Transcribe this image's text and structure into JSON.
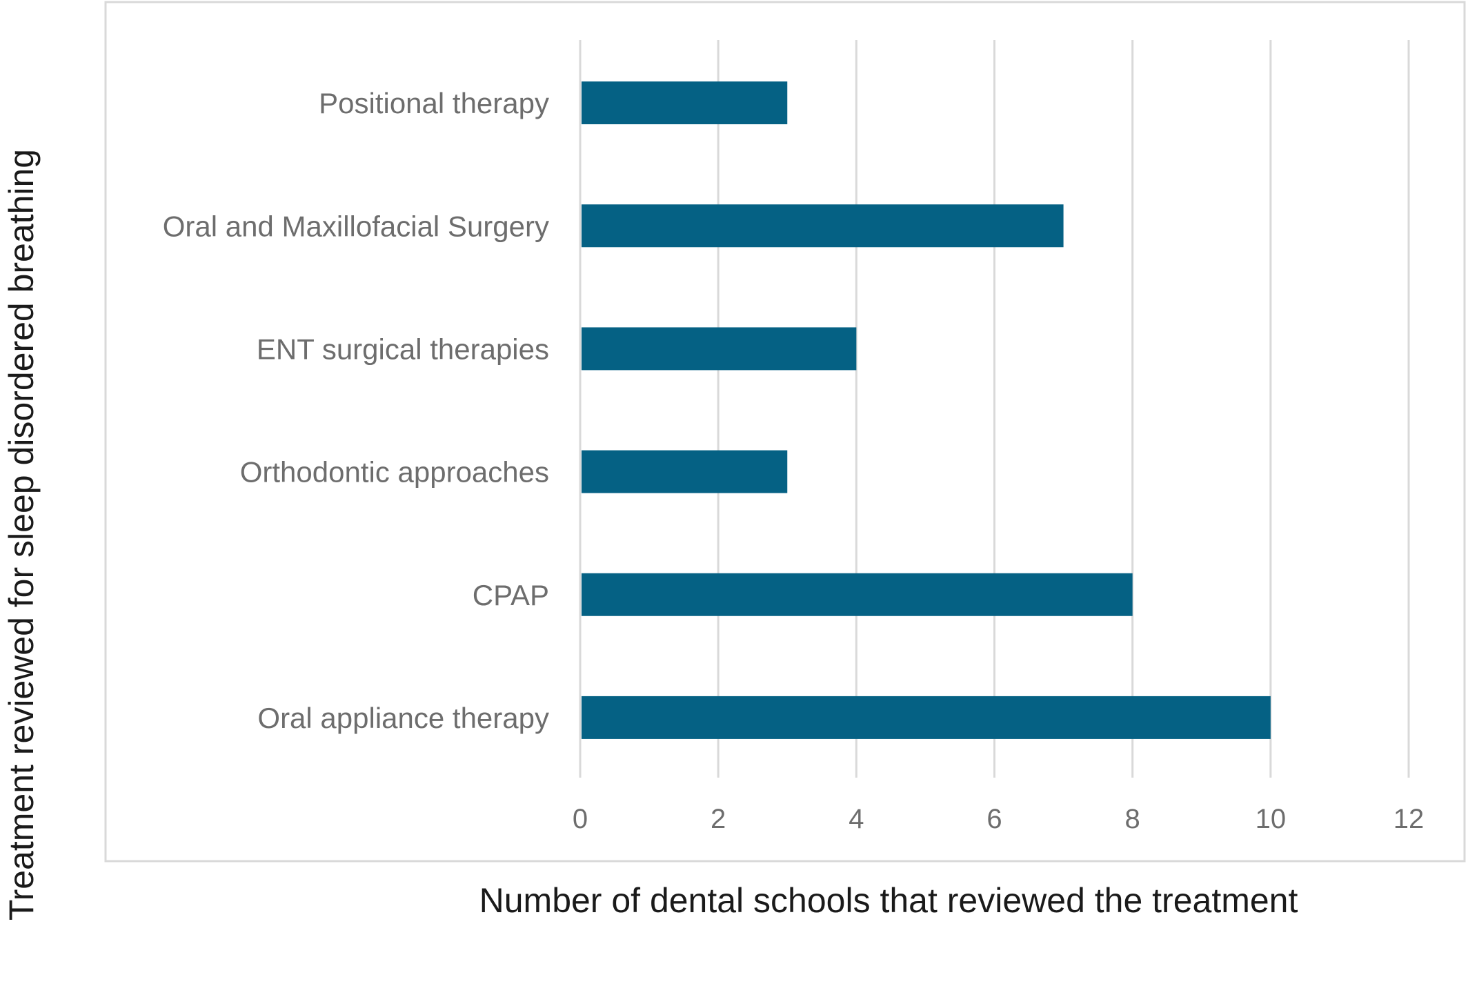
{
  "chart_data": {
    "type": "bar",
    "orientation": "horizontal",
    "title": "",
    "xlabel": "Number of dental schools that reviewed the treatment",
    "ylabel": "Treatment reviewed for sleep disordered breathing",
    "categories": [
      "Positional therapy",
      "Oral and Maxillofacial Surgery",
      "ENT surgical therapies",
      "Orthodontic approaches",
      "CPAP",
      "Oral appliance therapy"
    ],
    "values": [
      3,
      7,
      4,
      3,
      8,
      10
    ],
    "xlim": [
      0,
      12
    ],
    "xticks": [
      "0",
      "2",
      "4",
      "6",
      "8",
      "10",
      "12"
    ],
    "grid": "vertical",
    "legend": "none",
    "bar_color": "#056184"
  }
}
